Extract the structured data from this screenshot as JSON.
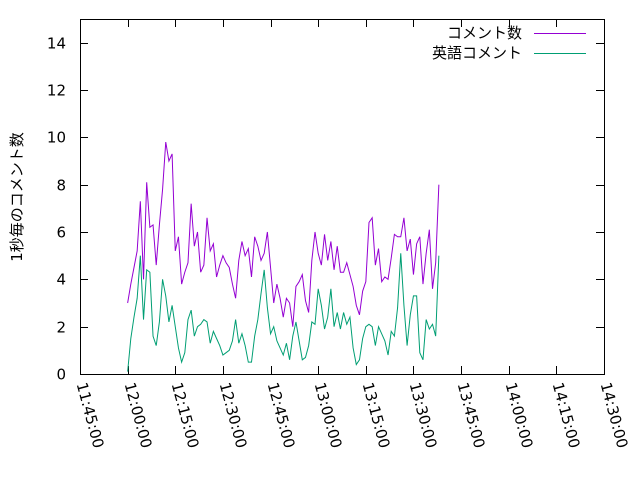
{
  "chart_data": {
    "type": "line",
    "ylabel": "1秒毎のコメント数",
    "xlabel": "",
    "ylim": [
      0,
      15
    ],
    "yticks": [
      0,
      2,
      4,
      6,
      8,
      10,
      12,
      14
    ],
    "xlim_minutes": [
      705,
      870
    ],
    "xticks": [
      {
        "min": 705,
        "label": "11:45:00"
      },
      {
        "min": 720,
        "label": "12:00:00"
      },
      {
        "min": 735,
        "label": "12:15:00"
      },
      {
        "min": 750,
        "label": "12:30:00"
      },
      {
        "min": 765,
        "label": "12:45:00"
      },
      {
        "min": 780,
        "label": "13:00:00"
      },
      {
        "min": 795,
        "label": "13:15:00"
      },
      {
        "min": 810,
        "label": "13:30:00"
      },
      {
        "min": 825,
        "label": "13:45:00"
      },
      {
        "min": 840,
        "label": "14:00:00"
      },
      {
        "min": 855,
        "label": "14:15:00"
      },
      {
        "min": 870,
        "label": "14:30:00"
      }
    ],
    "legend_position": "top-right",
    "series": [
      {
        "name": "コメント数",
        "color": "#9400d3",
        "x_start": 720,
        "x_step": 1,
        "values": [
          3.0,
          3.8,
          4.5,
          5.2,
          7.3,
          4.0,
          8.1,
          6.2,
          6.3,
          4.6,
          6.3,
          7.8,
          9.8,
          9.0,
          9.3,
          5.2,
          5.8,
          3.8,
          4.3,
          4.7,
          7.2,
          5.4,
          6.0,
          4.3,
          4.6,
          6.6,
          5.2,
          5.5,
          4.1,
          4.6,
          5.0,
          4.7,
          4.5,
          3.8,
          3.2,
          4.8,
          5.6,
          5.0,
          5.3,
          4.1,
          5.8,
          5.4,
          4.8,
          5.1,
          6.0,
          4.5,
          3.0,
          3.8,
          3.2,
          2.4,
          3.2,
          3.0,
          2.0,
          3.7,
          3.9,
          4.2,
          3.1,
          2.6,
          4.8,
          6.0,
          5.1,
          4.6,
          5.9,
          4.8,
          5.6,
          4.4,
          5.4,
          4.3,
          4.3,
          4.7,
          4.2,
          3.7,
          2.9,
          2.5,
          3.5,
          3.9,
          6.4,
          6.6,
          4.6,
          5.3,
          3.9,
          4.1,
          4.0,
          4.9,
          5.9,
          5.8,
          5.8,
          6.6,
          5.2,
          5.7,
          4.2,
          5.5,
          5.8,
          3.8,
          5.1,
          6.1,
          3.6,
          4.7,
          8.0
        ]
      },
      {
        "name": "英語コメント",
        "color": "#009e73",
        "x_start": 720,
        "x_step": 1,
        "values": [
          0.1,
          1.5,
          2.4,
          3.2,
          5.0,
          2.3,
          4.4,
          4.3,
          1.6,
          1.2,
          2.2,
          4.0,
          3.3,
          2.2,
          2.9,
          2.0,
          1.1,
          0.5,
          0.9,
          2.3,
          2.7,
          1.6,
          2.0,
          2.1,
          2.3,
          2.2,
          1.3,
          1.8,
          1.5,
          1.2,
          0.8,
          0.9,
          1.0,
          1.4,
          2.3,
          1.3,
          1.7,
          1.2,
          0.5,
          0.5,
          1.6,
          2.3,
          3.4,
          4.4,
          2.8,
          1.7,
          2.0,
          1.4,
          1.1,
          0.8,
          1.3,
          0.6,
          1.6,
          2.2,
          1.4,
          0.6,
          0.7,
          1.2,
          2.2,
          2.1,
          3.6,
          2.9,
          1.9,
          2.4,
          3.6,
          2.0,
          2.6,
          1.9,
          2.6,
          2.1,
          2.4,
          1.1,
          0.4,
          0.6,
          1.5,
          2.0,
          2.1,
          2.0,
          1.2,
          2.0,
          1.7,
          1.4,
          0.8,
          1.8,
          1.6,
          2.8,
          5.1,
          2.9,
          1.2,
          2.5,
          3.3,
          3.3,
          0.9,
          0.6,
          2.3,
          1.9,
          2.1,
          1.6,
          5.0
        ]
      }
    ]
  }
}
